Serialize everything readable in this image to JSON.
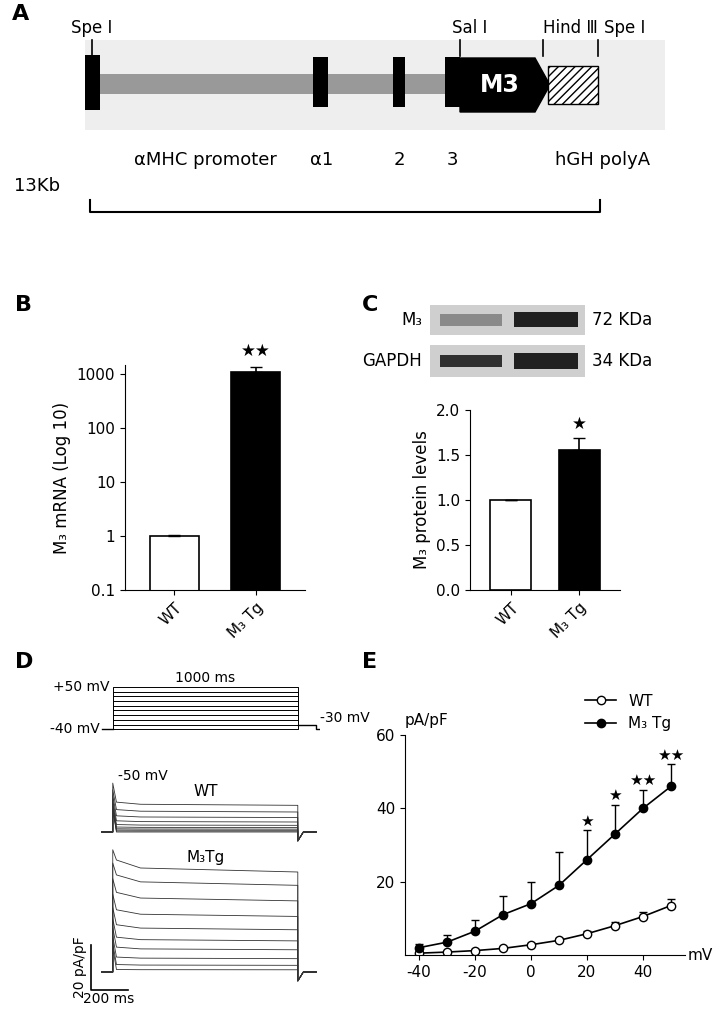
{
  "construct": {
    "panel_label": "A",
    "size_label": "13Kb",
    "promoter": "αMHC promoter",
    "exons": [
      "α1",
      "2",
      "3"
    ],
    "gene": "M3",
    "polyA": "hGH polyA",
    "sites": [
      "Spe Ⅰ",
      "Sal Ⅰ",
      "Hind Ⅲ",
      "Spe Ⅰ"
    ]
  },
  "blot": {
    "bands": [
      {
        "name": "M₃",
        "size": "72 KDa"
      },
      {
        "name": "GAPDH",
        "size": "34 KDa"
      }
    ]
  },
  "traces": {
    "panel_label": "D",
    "protocol": {
      "voltages_mv": [
        -40,
        -30,
        -20,
        -10,
        0,
        10,
        20,
        30,
        40,
        50
      ],
      "hold_mv": -40,
      "tail_mv": -30,
      "step_ms": 1000,
      "labels": {
        "step": "1000 ms",
        "top": "+50 mV",
        "hold": "-40 mV",
        "tail": "-30 mV"
      }
    },
    "note_label": "-50 mV",
    "records": [
      {
        "name": "WT",
        "levels": [
          0,
          0.4,
          0.8,
          1.3,
          2,
          3,
          4.5,
          6.5,
          9,
          12
        ]
      },
      {
        "name": "M₃Tg",
        "levels": [
          1,
          3,
          6,
          10,
          14,
          19,
          25,
          32,
          39,
          45
        ]
      }
    ],
    "scale_bar": {
      "current": 20,
      "current_label": "20 pA/pF",
      "time": 200,
      "time_label": "200 ms"
    }
  },
  "chart_data": [
    {
      "panel_label": "B",
      "type": "bar",
      "categories": [
        "WT",
        "M₃ Tg"
      ],
      "values": [
        1,
        1100
      ],
      "errors": [
        0.06,
        280
      ],
      "colors": [
        "#ffffff",
        "#000000"
      ],
      "ylabel": "M₃ mRNA (Log 10)",
      "log": "y",
      "ylim": [
        0.1,
        1500
      ],
      "yticks": [
        0.1,
        1,
        10,
        100,
        1000
      ],
      "annotations": [
        null,
        "★★"
      ]
    },
    {
      "panel_label": "C",
      "type": "bar",
      "categories": [
        "WT",
        "M₃ Tg"
      ],
      "values": [
        1.0,
        1.55
      ],
      "errors": [
        0,
        0.14
      ],
      "colors": [
        "#ffffff",
        "#000000"
      ],
      "ylabel": "M₃ protein levels",
      "ylim": [
        0,
        2
      ],
      "yticks": [
        {
          "value": 0,
          "label": "0.0"
        },
        0.5,
        {
          "value": 1,
          "label": "1.0"
        },
        1.5,
        {
          "value": 2,
          "label": "2.0"
        }
      ],
      "annotations": [
        null,
        "★"
      ]
    },
    {
      "panel_label": "E",
      "type": "line",
      "x": [
        -40,
        -30,
        -20,
        -10,
        0,
        10,
        20,
        30,
        40,
        50
      ],
      "xlim": [
        -45,
        55
      ],
      "xticks": [
        -40,
        -20,
        0,
        20,
        40
      ],
      "ylim": [
        0,
        60
      ],
      "yticks": [
        20,
        40,
        60
      ],
      "xlabel": "mV",
      "ylabel": "pA/pF",
      "legend": "upper right",
      "series": [
        {
          "name": "WT",
          "color": "#000000",
          "marker": "open_circle",
          "values": [
            0.5,
            0.8,
            1.2,
            1.8,
            2.8,
            4,
            5.8,
            8,
            10.5,
            13.5
          ],
          "errors": [
            0.3,
            0.3,
            0.4,
            0.5,
            0.6,
            0.7,
            0.8,
            1,
            1.3,
            1.8
          ]
        },
        {
          "name": "M₃ Tg",
          "color": "#000000",
          "marker": "filled_circle",
          "values": [
            2,
            3.5,
            6.5,
            11,
            14,
            19,
            26,
            33,
            40,
            46
          ],
          "errors": [
            1,
            2,
            3,
            5,
            6,
            9,
            8,
            8,
            5,
            6
          ],
          "annotations": [
            null,
            null,
            null,
            null,
            null,
            null,
            "★",
            "★",
            "★★",
            "★★"
          ]
        }
      ]
    }
  ]
}
